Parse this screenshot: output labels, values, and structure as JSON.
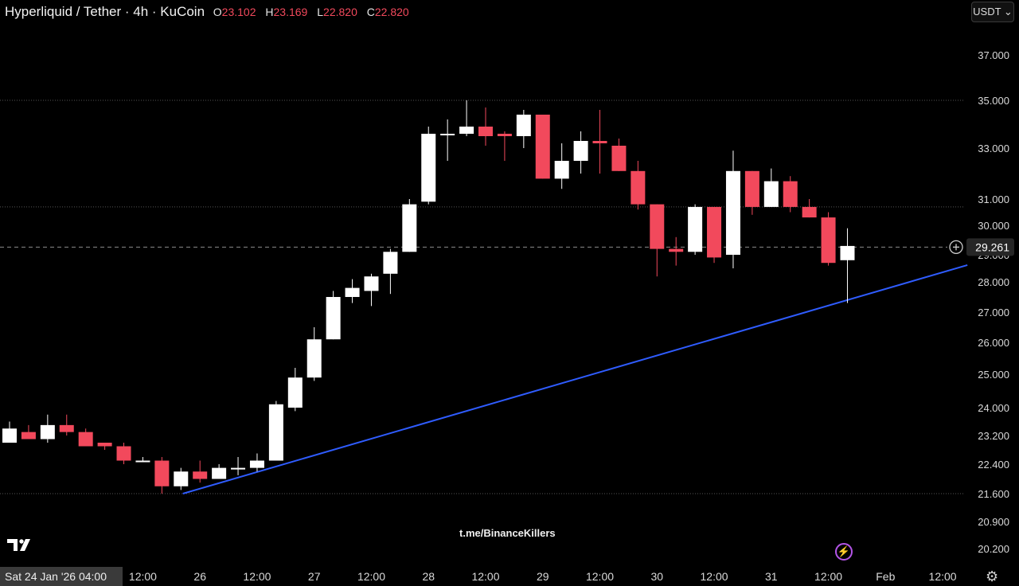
{
  "header": {
    "symbol": "Hyperliquid / Tether · 4h · KuCoin",
    "o_label": "O",
    "o_value": "23.102",
    "h_label": "H",
    "h_value": "23.169",
    "l_label": "L",
    "l_value": "22.820",
    "c_label": "C",
    "c_value": "22.820"
  },
  "currency_button": "USDT ⌄",
  "watermark": "t.me/BinanceKillers",
  "date_badge": "Sat 24 Jan '26   04:00",
  "colors": {
    "up": "#ffffff",
    "down": "#f2495c",
    "trend": "#2f5cff",
    "grid": "#555555"
  },
  "chart_data": {
    "type": "candlestick",
    "title": "",
    "interval": "4h",
    "price_label": "29.261",
    "y_ticks": [
      "37.000",
      "35.000",
      "33.000",
      "31.000",
      "30.000",
      "29.000",
      "28.000",
      "27.000",
      "26.000",
      "25.000",
      "24.000",
      "23.200",
      "22.400",
      "21.600",
      "20.900",
      "20.200"
    ],
    "x_ticks": [
      {
        "label": "12:00",
        "i": 7
      },
      {
        "label": "26",
        "i": 10
      },
      {
        "label": "12:00",
        "i": 13
      },
      {
        "label": "27",
        "i": 16
      },
      {
        "label": "12:00",
        "i": 19
      },
      {
        "label": "28",
        "i": 22
      },
      {
        "label": "12:00",
        "i": 25
      },
      {
        "label": "29",
        "i": 28
      },
      {
        "label": "12:00",
        "i": 31
      },
      {
        "label": "30",
        "i": 34
      },
      {
        "label": "12:00",
        "i": 37
      },
      {
        "label": "31",
        "i": 40
      },
      {
        "label": "12:00",
        "i": 43
      },
      {
        "label": "Feb",
        "i": 46
      },
      {
        "label": "12:00",
        "i": 49
      }
    ],
    "horizontal_levels": [
      35.0,
      30.7,
      21.6
    ],
    "trendline": {
      "start": {
        "i": 9.1,
        "price": 21.6
      },
      "end": {
        "i": 50.3,
        "price": 28.62
      }
    },
    "candles": [
      {
        "o": 23.0,
        "h": 23.6,
        "l": 23.0,
        "c": 23.4
      },
      {
        "o": 23.3,
        "h": 23.5,
        "l": 23.1,
        "c": 23.1
      },
      {
        "o": 23.1,
        "h": 23.8,
        "l": 23.0,
        "c": 23.5
      },
      {
        "o": 23.5,
        "h": 23.8,
        "l": 23.2,
        "c": 23.3
      },
      {
        "o": 23.3,
        "h": 23.4,
        "l": 22.9,
        "c": 22.9
      },
      {
        "o": 23.0,
        "h": 23.0,
        "l": 22.8,
        "c": 22.9
      },
      {
        "o": 22.9,
        "h": 23.0,
        "l": 22.4,
        "c": 22.5
      },
      {
        "o": 22.5,
        "h": 22.6,
        "l": 22.5,
        "c": 22.5
      },
      {
        "o": 22.5,
        "h": 22.6,
        "l": 21.6,
        "c": 21.8
      },
      {
        "o": 21.8,
        "h": 22.3,
        "l": 21.7,
        "c": 22.2
      },
      {
        "o": 22.2,
        "h": 22.5,
        "l": 21.9,
        "c": 22.0
      },
      {
        "o": 22.0,
        "h": 22.4,
        "l": 22.0,
        "c": 22.3
      },
      {
        "o": 22.3,
        "h": 22.6,
        "l": 22.1,
        "c": 22.3
      },
      {
        "o": 22.3,
        "h": 22.7,
        "l": 22.2,
        "c": 22.5
      },
      {
        "o": 22.5,
        "h": 24.2,
        "l": 22.5,
        "c": 24.1
      },
      {
        "o": 24.0,
        "h": 25.2,
        "l": 23.9,
        "c": 24.9
      },
      {
        "o": 24.9,
        "h": 26.5,
        "l": 24.8,
        "c": 26.1
      },
      {
        "o": 26.1,
        "h": 27.7,
        "l": 26.1,
        "c": 27.5
      },
      {
        "o": 27.5,
        "h": 28.1,
        "l": 27.3,
        "c": 27.8
      },
      {
        "o": 27.7,
        "h": 28.3,
        "l": 27.2,
        "c": 28.2
      },
      {
        "o": 28.3,
        "h": 29.2,
        "l": 27.6,
        "c": 29.1
      },
      {
        "o": 29.1,
        "h": 31.0,
        "l": 29.1,
        "c": 30.8
      },
      {
        "o": 30.9,
        "h": 33.9,
        "l": 30.8,
        "c": 33.6
      },
      {
        "o": 33.6,
        "h": 34.2,
        "l": 32.5,
        "c": 33.6
      },
      {
        "o": 33.6,
        "h": 35.0,
        "l": 33.5,
        "c": 33.9
      },
      {
        "o": 33.9,
        "h": 34.7,
        "l": 33.1,
        "c": 33.5
      },
      {
        "o": 33.6,
        "h": 33.7,
        "l": 32.5,
        "c": 33.5
      },
      {
        "o": 33.5,
        "h": 34.6,
        "l": 33.0,
        "c": 34.4
      },
      {
        "o": 34.4,
        "h": 34.4,
        "l": 31.8,
        "c": 31.8
      },
      {
        "o": 31.8,
        "h": 33.2,
        "l": 31.4,
        "c": 32.5
      },
      {
        "o": 32.5,
        "h": 33.7,
        "l": 32.0,
        "c": 33.3
      },
      {
        "o": 33.3,
        "h": 34.6,
        "l": 32.0,
        "c": 33.2
      },
      {
        "o": 33.1,
        "h": 33.4,
        "l": 32.1,
        "c": 32.1
      },
      {
        "o": 32.1,
        "h": 32.5,
        "l": 30.6,
        "c": 30.8
      },
      {
        "o": 30.8,
        "h": 30.8,
        "l": 28.2,
        "c": 29.2
      },
      {
        "o": 29.2,
        "h": 29.6,
        "l": 28.6,
        "c": 29.1
      },
      {
        "o": 29.1,
        "h": 30.8,
        "l": 29.0,
        "c": 30.7
      },
      {
        "o": 30.7,
        "h": 30.7,
        "l": 28.7,
        "c": 28.9
      },
      {
        "o": 29.0,
        "h": 32.9,
        "l": 28.5,
        "c": 32.1
      },
      {
        "o": 32.1,
        "h": 32.1,
        "l": 30.4,
        "c": 30.7
      },
      {
        "o": 30.7,
        "h": 32.2,
        "l": 30.7,
        "c": 31.7
      },
      {
        "o": 31.7,
        "h": 31.9,
        "l": 30.5,
        "c": 30.7
      },
      {
        "o": 30.7,
        "h": 31.0,
        "l": 30.3,
        "c": 30.3
      },
      {
        "o": 30.3,
        "h": 30.5,
        "l": 28.6,
        "c": 28.7
      },
      {
        "o": 28.8,
        "h": 29.9,
        "l": 27.3,
        "c": 29.3
      }
    ]
  }
}
